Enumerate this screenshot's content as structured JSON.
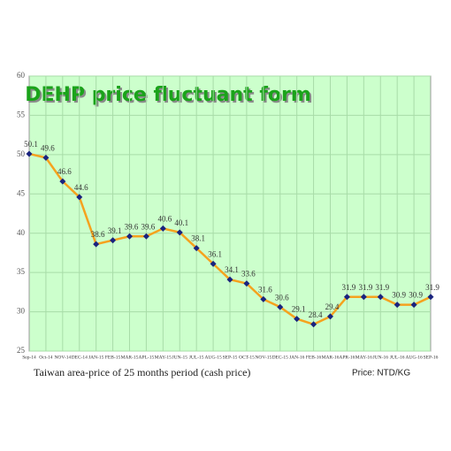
{
  "chart_data": {
    "type": "line",
    "title": "DEHP price fluctuant form",
    "caption": "Taiwan area-price of 25 months period (cash price)",
    "unit_note": "Price: NTD/KG",
    "categories": [
      "Sep-14",
      "Oct-14",
      "NOV-14",
      "DEC-14",
      "JAN-15",
      "FEB-15",
      "MAR-15",
      "APL-15",
      "MAY-15",
      "JUN-15",
      "JUL-15",
      "AUG-15",
      "SEP-15",
      "OCT-15",
      "NOV-15",
      "DEC-15",
      "JAN-16",
      "FEB-16",
      "MAR-16",
      "APR-16",
      "MAY-16",
      "JUN-16",
      "JUL-16",
      "AUG-16",
      "SEP-16"
    ],
    "series": [
      {
        "name": "DEHP",
        "color": "#f5a21e",
        "marker_color": "#1a237e",
        "values": [
          50.1,
          49.6,
          46.6,
          44.6,
          38.6,
          39.1,
          39.6,
          39.6,
          40.6,
          40.1,
          38.1,
          36.1,
          34.1,
          33.6,
          31.6,
          30.6,
          29.1,
          28.4,
          29.4,
          31.9,
          31.9,
          31.9,
          30.9,
          30.9,
          31.9
        ]
      }
    ],
    "ylim": [
      25,
      60
    ],
    "yticks": [
      25,
      30,
      35,
      40,
      45,
      50,
      55,
      60
    ],
    "grid": true
  }
}
